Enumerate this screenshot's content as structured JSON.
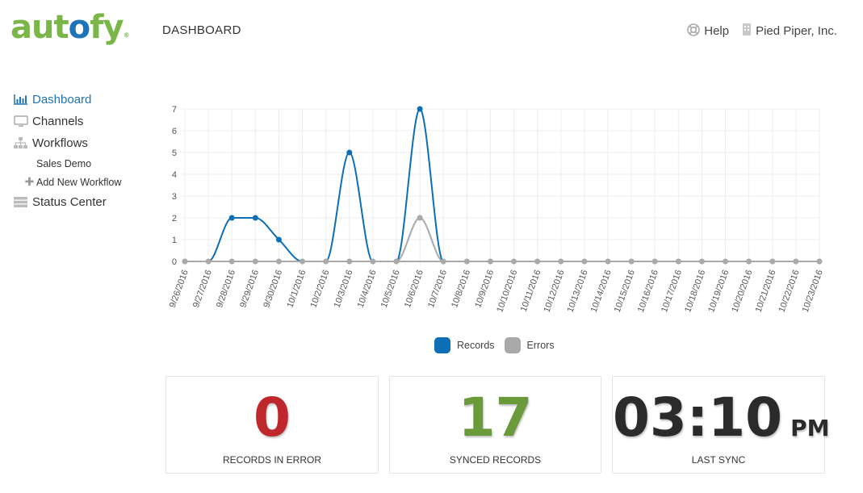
{
  "brand": {
    "logo_pre": "aut",
    "logo_o": "o",
    "logo_post": "fy",
    "logo_mark": "®"
  },
  "header": {
    "title": "DASHBOARD"
  },
  "topnav": {
    "help": "Help",
    "company": "Pied Piper, Inc."
  },
  "sidebar": {
    "items": [
      {
        "label": "Dashboard",
        "icon": "bar-chart-icon",
        "active": true
      },
      {
        "label": "Channels",
        "icon": "monitor-icon"
      },
      {
        "label": "Workflows",
        "icon": "sitemap-icon"
      },
      {
        "label": "Sales Demo",
        "sub": true
      },
      {
        "label": "Add New Workflow",
        "sub": true,
        "icon": "plus-icon"
      },
      {
        "label": "Status Center",
        "icon": "server-icon"
      }
    ]
  },
  "chart_data": {
    "type": "line",
    "categories": [
      "9/26/2016",
      "9/27/2016",
      "9/28/2016",
      "9/29/2016",
      "9/30/2016",
      "10/1/2016",
      "10/2/2016",
      "10/3/2016",
      "10/4/2016",
      "10/5/2016",
      "10/6/2016",
      "10/7/2016",
      "10/8/2016",
      "10/9/2016",
      "10/10/2016",
      "10/11/2016",
      "10/12/2016",
      "10/13/2016",
      "10/14/2016",
      "10/15/2016",
      "10/16/2016",
      "10/17/2016",
      "10/18/2016",
      "10/19/2016",
      "10/20/2016",
      "10/21/2016",
      "10/22/2016",
      "10/23/2016"
    ],
    "series": [
      {
        "name": "Records",
        "color": "#0c6fb5",
        "values": [
          0,
          0,
          2,
          2,
          1,
          0,
          0,
          5,
          0,
          0,
          7,
          0,
          0,
          0,
          0,
          0,
          0,
          0,
          0,
          0,
          0,
          0,
          0,
          0,
          0,
          0,
          0,
          0
        ]
      },
      {
        "name": "Errors",
        "color": "#a9a9a9",
        "values": [
          0,
          0,
          0,
          0,
          0,
          0,
          0,
          0,
          0,
          0,
          2,
          0,
          0,
          0,
          0,
          0,
          0,
          0,
          0,
          0,
          0,
          0,
          0,
          0,
          0,
          0,
          0,
          0
        ]
      }
    ],
    "ylim": [
      0,
      7
    ],
    "yticks": [
      0,
      1,
      2,
      3,
      4,
      5,
      6,
      7
    ],
    "grid": true,
    "legend": "bottom-center"
  },
  "stats": {
    "error": {
      "value": "0",
      "label": "RECORDS IN ERROR",
      "color": "#c0272d"
    },
    "synced": {
      "value": "17",
      "label": "SYNCED RECORDS",
      "color": "#6a9a3a"
    },
    "last_sync": {
      "value": "03:10",
      "suffix": "PM",
      "label": "LAST SYNC",
      "color": "#2b2b2b"
    }
  }
}
